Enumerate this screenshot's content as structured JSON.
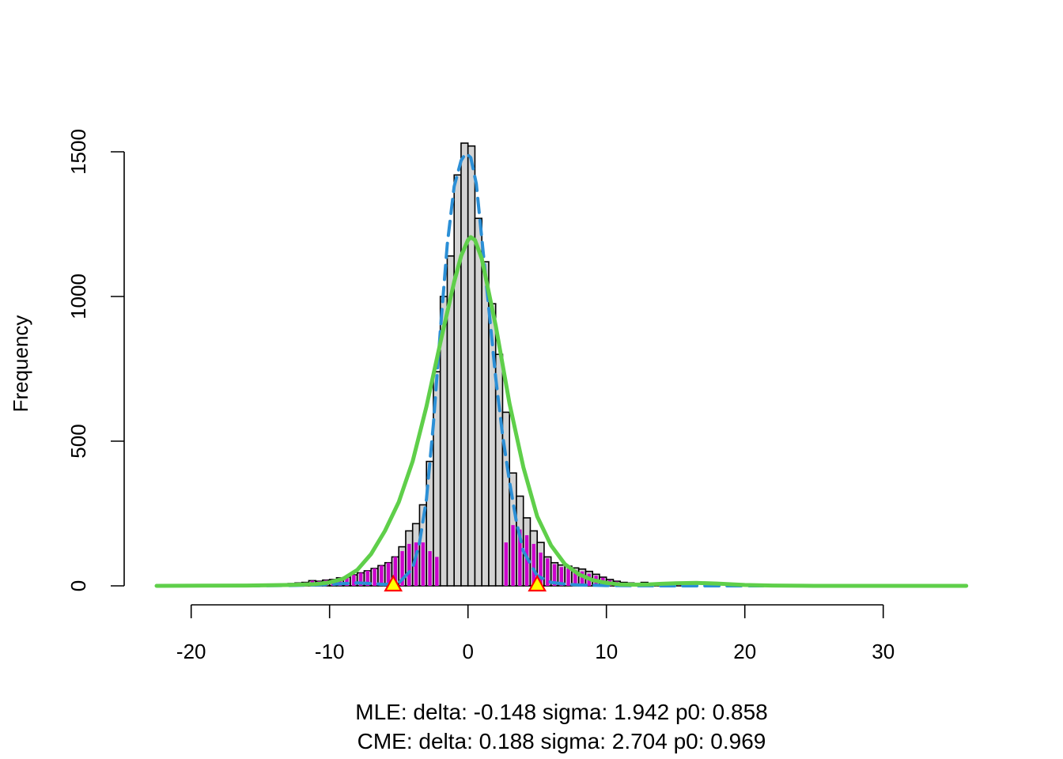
{
  "chart_data": {
    "type": "bar",
    "title": "",
    "xlabel": "",
    "ylabel": "Frequency",
    "xlim": [
      -22.5,
      36
    ],
    "ylim": [
      0,
      1600
    ],
    "xticks": [
      -20,
      -10,
      0,
      10,
      20,
      30
    ],
    "xtick_labels": [
      "-20",
      "-10",
      "0",
      "10",
      "20",
      "30"
    ],
    "yticks": [
      0,
      500,
      1000,
      1500
    ],
    "ytick_labels": [
      "0",
      "500",
      "1000",
      "1500"
    ],
    "bin_width": 0.5,
    "grid": false,
    "legend": "none",
    "colors": {
      "hist_fill": "#d3d3d3",
      "hist_border": "#000000",
      "null_bars": "#cc00cc",
      "mle_curve": "#2b8fd6",
      "cme_curve": "#5fcf4a",
      "marker_fill": "#ffff00",
      "marker_border": "#ff0000"
    },
    "histogram": {
      "x_left": [
        -15,
        -14.5,
        -14,
        -13.5,
        -13,
        -12.5,
        -12,
        -11.5,
        -11,
        -10.5,
        -10,
        -9.5,
        -9,
        -8.5,
        -8,
        -7.5,
        -7,
        -6.5,
        -6,
        -5.5,
        -5,
        -4.5,
        -4,
        -3.5,
        -3,
        -2.5,
        -2,
        -1.5,
        -1,
        -0.5,
        0,
        0.5,
        1,
        1.5,
        2,
        2.5,
        3,
        3.5,
        4,
        4.5,
        5,
        5.5,
        6,
        6.5,
        7,
        7.5,
        8,
        8.5,
        9,
        9.5,
        10,
        10.5,
        11,
        11.5,
        12,
        12.5,
        13,
        13.5,
        14,
        14.5,
        15,
        15.5,
        16
      ],
      "counts": [
        2,
        3,
        4,
        6,
        8,
        10,
        12,
        18,
        16,
        20,
        22,
        28,
        30,
        38,
        45,
        52,
        60,
        70,
        80,
        100,
        135,
        190,
        215,
        280,
        430,
        740,
        1000,
        1140,
        1420,
        1530,
        1520,
        1270,
        1120,
        975,
        800,
        600,
        390,
        310,
        235,
        190,
        150,
        100,
        80,
        72,
        68,
        62,
        58,
        50,
        40,
        30,
        22,
        16,
        12,
        10,
        8,
        12,
        6,
        4,
        3,
        2,
        2,
        1,
        1
      ]
    },
    "null_bars": {
      "x_left": [
        -15,
        -14.5,
        -14,
        -13.5,
        -13,
        -12.5,
        -12,
        -11.5,
        -11,
        -10.5,
        -10,
        -9.5,
        -9,
        -8.5,
        -8,
        -7.5,
        -7,
        -6.5,
        -6,
        -5.5,
        -5,
        -4.5,
        -4,
        -3.5,
        -3,
        -2.5,
        2.5,
        3,
        3.5,
        4,
        4.5,
        5,
        5.5,
        6,
        6.5,
        7,
        7.5,
        8,
        8.5,
        9,
        9.5,
        10,
        10.5,
        11,
        11.5,
        12,
        12.5,
        13,
        13.5,
        14,
        14.5,
        15,
        15.5,
        16
      ],
      "counts": [
        2,
        3,
        4,
        6,
        8,
        10,
        12,
        18,
        16,
        20,
        22,
        28,
        30,
        38,
        45,
        52,
        60,
        70,
        80,
        100,
        120,
        145,
        150,
        150,
        120,
        100,
        150,
        210,
        195,
        175,
        145,
        115,
        95,
        75,
        65,
        60,
        55,
        50,
        42,
        35,
        28,
        20,
        15,
        11,
        9,
        10,
        6,
        4,
        3,
        2,
        2,
        1,
        1,
        1
      ]
    },
    "curves": [
      {
        "x": [
          -22.5,
          -16,
          -13,
          -11,
          -10,
          -9,
          -8,
          -7,
          -6,
          -5,
          -4,
          -3.5,
          -3,
          -2.5,
          -2,
          -1.5,
          -1,
          -0.5,
          -0.15,
          0.2,
          0.6,
          1,
          1.5,
          2,
          2.5,
          3,
          3.5,
          4,
          5,
          6,
          7,
          8,
          10,
          14,
          20,
          36
        ],
        "y": [
          0,
          0,
          1,
          3,
          5,
          8,
          10,
          8,
          5,
          10,
          60,
          150,
          300,
          560,
          880,
          1180,
          1380,
          1470,
          1495,
          1480,
          1390,
          1200,
          960,
          720,
          520,
          360,
          220,
          120,
          35,
          12,
          6,
          3,
          1,
          0,
          0,
          0
        ]
      },
      {
        "x": [
          -22.5,
          -16,
          -13,
          -11,
          -10,
          -9,
          -8,
          -7,
          -6,
          -5,
          -4,
          -3,
          -2,
          -1,
          -0.5,
          0,
          0.2,
          0.5,
          1,
          2,
          3,
          4,
          5,
          6,
          7,
          8,
          9,
          10,
          11,
          12,
          13,
          14,
          15,
          16.5,
          18,
          20,
          22,
          25,
          36
        ],
        "y": [
          0,
          1,
          3,
          6,
          12,
          25,
          55,
          110,
          190,
          290,
          430,
          620,
          840,
          1050,
          1140,
          1195,
          1205,
          1195,
          1130,
          900,
          630,
          410,
          240,
          140,
          75,
          40,
          20,
          10,
          5,
          4,
          5,
          7,
          9,
          10,
          8,
          3,
          1,
          0,
          0
        ]
      }
    ],
    "markers": [
      {
        "x": -5.4,
        "y": 0
      },
      {
        "x": 5.0,
        "y": 0
      }
    ],
    "annotations": [
      "MLE: delta: -0.148 sigma: 1.942 p0: 0.858",
      "CME: delta: 0.188 sigma: 2.704 p0: 0.969"
    ]
  }
}
